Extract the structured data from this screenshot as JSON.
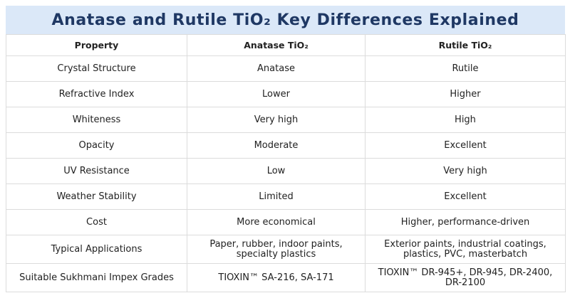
{
  "header": {
    "title": "Anatase and Rutile TiO₂ Key Differences Explained"
  },
  "table": {
    "columns": [
      "Property",
      "Anatase TiO₂",
      "Rutile TiO₂"
    ],
    "rows": [
      [
        "Crystal Structure",
        "Anatase",
        "Rutile"
      ],
      [
        "Refractive Index",
        "Lower",
        "Higher"
      ],
      [
        "Whiteness",
        "Very high",
        "High"
      ],
      [
        "Opacity",
        "Moderate",
        "Excellent"
      ],
      [
        "UV Resistance",
        "Low",
        "Very high"
      ],
      [
        "Weather Stability",
        "Limited",
        "Excellent"
      ],
      [
        "Cost",
        "More economical",
        "Higher, performance-driven"
      ],
      [
        "Typical Applications",
        "Paper, rubber, indoor paints, specialty plastics",
        "Exterior paints, industrial coatings, plastics, PVC, masterbatch"
      ],
      [
        "Suitable Sukhmani Impex Grades",
        "TIOXIN™ SA-216, SA-171",
        "TIOXIN™ DR-945+, DR-945, DR-2400, DR-2100"
      ]
    ]
  }
}
